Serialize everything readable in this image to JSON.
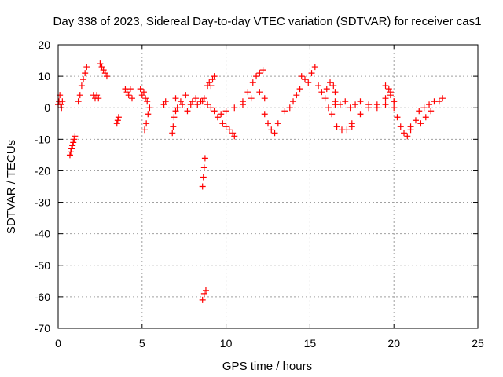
{
  "chart_data": {
    "type": "scatter",
    "title": "Day 338 of 2023, Sidereal Day-to-day VTEC variation (SDTVAR) for receiver cas1",
    "xlabel": "GPS time / hours",
    "ylabel": "SDTVAR / TECUs",
    "xlim": [
      0,
      25
    ],
    "ylim": [
      -70,
      20
    ],
    "x_ticks": [
      0,
      5,
      10,
      15,
      20,
      25
    ],
    "y_ticks": [
      20,
      10,
      0,
      -10,
      -20,
      -30,
      -40,
      -50,
      -60,
      -70
    ],
    "grid": true,
    "marker": "plus",
    "colors": {
      "series": "#ff0000",
      "grid": "#a0a0a0",
      "axis": "#000000"
    },
    "segments": [
      {
        "x": [
          0.0,
          0.05,
          0.1,
          0.15,
          0.2,
          0.25
        ],
        "y": [
          1,
          2,
          4,
          1,
          0,
          2
        ]
      },
      {
        "x": [
          0.7,
          0.75,
          0.8,
          0.85,
          0.9,
          0.95,
          1.0
        ],
        "y": [
          -15,
          -14,
          -13,
          -12,
          -11,
          -10,
          -9
        ]
      },
      {
        "x": [
          1.2,
          1.3,
          1.4,
          1.5,
          1.6,
          1.7
        ],
        "y": [
          2,
          4,
          7,
          9,
          11,
          13
        ]
      },
      {
        "x": [
          2.1,
          2.2,
          2.3,
          2.4
        ],
        "y": [
          4,
          3,
          4,
          3
        ]
      },
      {
        "x": [
          2.5,
          2.6,
          2.7,
          2.8,
          2.9
        ],
        "y": [
          14,
          13,
          12,
          11,
          10
        ]
      },
      {
        "x": [
          3.5,
          3.55,
          3.6
        ],
        "y": [
          -5,
          -4,
          -3
        ]
      },
      {
        "x": [
          4.0,
          4.1,
          4.2,
          4.3,
          4.4
        ],
        "y": [
          6,
          5,
          4,
          6,
          3
        ]
      },
      {
        "x": [
          4.9,
          5.0,
          5.1,
          5.2,
          5.3
        ],
        "y": [
          6,
          4,
          5,
          3,
          2
        ]
      },
      {
        "x": [
          5.15,
          5.25,
          5.35,
          5.45
        ],
        "y": [
          -7,
          -5,
          -2,
          0
        ]
      },
      {
        "x": [
          6.3,
          6.4
        ],
        "y": [
          1,
          2
        ]
      },
      {
        "x": [
          6.8,
          6.85,
          6.9,
          7.0
        ],
        "y": [
          -8,
          -6,
          -3,
          -1
        ]
      },
      {
        "x": [
          7.0,
          7.3,
          7.6,
          7.9,
          8.2,
          8.5,
          8.7
        ],
        "y": [
          3,
          2,
          4,
          1,
          3,
          2,
          3
        ]
      },
      {
        "x": [
          7.1,
          7.4,
          7.7,
          8.0,
          8.3,
          8.6
        ],
        "y": [
          0,
          1,
          -1,
          2,
          1,
          2
        ]
      },
      {
        "x": [
          8.6,
          8.65,
          8.7,
          8.75
        ],
        "y": [
          -25,
          -22,
          -19,
          -16
        ]
      },
      {
        "x": [
          8.6,
          8.7,
          8.8
        ],
        "y": [
          -61,
          -59,
          -58
        ]
      },
      {
        "x": [
          8.9,
          9.0,
          9.1,
          9.2,
          9.3
        ],
        "y": [
          7,
          8,
          7,
          9,
          10
        ]
      },
      {
        "x": [
          8.9,
          9.1,
          9.3,
          9.5,
          9.7
        ],
        "y": [
          1,
          0,
          -1,
          -3,
          -2
        ]
      },
      {
        "x": [
          9.8,
          10.0,
          10.2,
          10.4,
          10.5
        ],
        "y": [
          -5,
          -6,
          -7,
          -8,
          -9
        ]
      },
      {
        "x": [
          10.0,
          10.5,
          11.0,
          11.3,
          11.6,
          11.8,
          12.0,
          12.2
        ],
        "y": [
          -1,
          0,
          2,
          5,
          8,
          10,
          11,
          12
        ]
      },
      {
        "x": [
          11.0,
          11.5,
          12.0,
          12.3
        ],
        "y": [
          1,
          3,
          5,
          3
        ]
      },
      {
        "x": [
          12.3,
          12.5,
          12.7,
          12.9,
          13.1
        ],
        "y": [
          -2,
          -5,
          -7,
          -8,
          -5
        ]
      },
      {
        "x": [
          13.5,
          13.8,
          14.0,
          14.2,
          14.4
        ],
        "y": [
          -1,
          0,
          2,
          4,
          6
        ]
      },
      {
        "x": [
          14.5,
          14.7,
          14.9,
          15.1,
          15.3
        ],
        "y": [
          10,
          9,
          8,
          11,
          13
        ]
      },
      {
        "x": [
          15.5,
          15.7,
          15.9,
          16.1,
          16.3,
          16.5
        ],
        "y": [
          7,
          5,
          3,
          0,
          -2,
          1
        ]
      },
      {
        "x": [
          16.0,
          16.2,
          16.4,
          16.5
        ],
        "y": [
          6,
          8,
          7,
          5
        ]
      },
      {
        "x": [
          16.5,
          16.8,
          17.1,
          17.4,
          17.7
        ],
        "y": [
          2,
          1,
          2,
          0,
          1
        ]
      },
      {
        "x": [
          16.6,
          16.9,
          17.2,
          17.5
        ],
        "y": [
          -6,
          -7,
          -7,
          -6
        ]
      },
      {
        "x": [
          17.5,
          18.0,
          18.5,
          19.0,
          19.5,
          19.8
        ],
        "y": [
          -5,
          -2,
          0,
          1,
          3,
          5
        ]
      },
      {
        "x": [
          18.0,
          18.5,
          19.0,
          19.5,
          20.0
        ],
        "y": [
          2,
          1,
          0,
          1,
          2
        ]
      },
      {
        "x": [
          19.5,
          19.7,
          19.8,
          20.0
        ],
        "y": [
          7,
          6,
          4,
          2
        ]
      },
      {
        "x": [
          20.0,
          20.2,
          20.4,
          20.6,
          20.8,
          21.0
        ],
        "y": [
          0,
          -3,
          -6,
          -8,
          -9,
          -7
        ]
      },
      {
        "x": [
          21.0,
          21.3,
          21.6,
          21.9,
          22.2
        ],
        "y": [
          -6,
          -4,
          -5,
          -3,
          -1
        ]
      },
      {
        "x": [
          21.5,
          21.8,
          22.1,
          22.4,
          22.7,
          22.9
        ],
        "y": [
          -1,
          0,
          1,
          2,
          2,
          3
        ]
      }
    ]
  }
}
